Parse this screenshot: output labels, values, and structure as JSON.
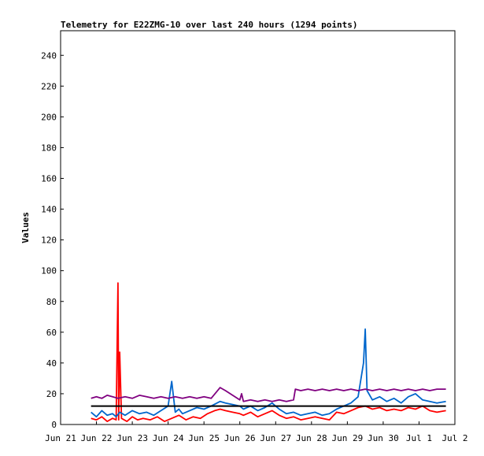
{
  "chart_data": {
    "type": "line",
    "title": "Telemetry for E22ZMG-10 over last 240 hours (1294 points)",
    "xlabel": "",
    "ylabel": "Values",
    "xlim": [
      0,
      11
    ],
    "ylim": [
      0,
      256
    ],
    "grid": false,
    "legend": "none",
    "x_ticks": [
      {
        "pos": 0,
        "label": "Jun 21"
      },
      {
        "pos": 1,
        "label": "Jun 22"
      },
      {
        "pos": 2,
        "label": "Jun 23"
      },
      {
        "pos": 3,
        "label": "Jun 24"
      },
      {
        "pos": 4,
        "label": "Jun 25"
      },
      {
        "pos": 5,
        "label": "Jun 26"
      },
      {
        "pos": 6,
        "label": "Jun 27"
      },
      {
        "pos": 7,
        "label": "Jun 28"
      },
      {
        "pos": 8,
        "label": "Jun 29"
      },
      {
        "pos": 9,
        "label": "Jun 30"
      },
      {
        "pos": 10,
        "label": "Jul 1"
      },
      {
        "pos": 11,
        "label": "Jul 2"
      }
    ],
    "y_ticks": [
      0,
      20,
      40,
      60,
      80,
      100,
      120,
      140,
      160,
      180,
      200,
      220,
      240
    ],
    "series": [
      {
        "color": "#ff0000",
        "x": [
          0.85,
          1.0,
          1.15,
          1.3,
          1.45,
          1.55,
          1.6,
          1.62,
          1.65,
          1.7,
          1.85,
          2.0,
          2.15,
          2.3,
          2.5,
          2.7,
          2.9,
          3.1,
          3.3,
          3.5,
          3.7,
          3.9,
          4.1,
          4.3,
          4.45,
          4.6,
          4.8,
          5.0,
          5.1,
          5.3,
          5.5,
          5.7,
          5.9,
          6.1,
          6.3,
          6.5,
          6.7,
          6.9,
          7.1,
          7.3,
          7.5,
          7.7,
          7.9,
          8.1,
          8.3,
          8.5,
          8.7,
          8.9,
          9.1,
          9.3,
          9.5,
          9.7,
          9.9,
          10.1,
          10.3,
          10.5,
          10.75
        ],
        "y": [
          4,
          3,
          5,
          2,
          4,
          3,
          92,
          3,
          47,
          4,
          2,
          5,
          3,
          4,
          3,
          5,
          2,
          4,
          6,
          3,
          5,
          4,
          7,
          9,
          10,
          9,
          8,
          7,
          6,
          8,
          5,
          7,
          9,
          6,
          4,
          5,
          3,
          4,
          5,
          4,
          3,
          8,
          7,
          9,
          11,
          12,
          10,
          11,
          9,
          10,
          9,
          11,
          10,
          12,
          9,
          8,
          9
        ]
      },
      {
        "color": "#0066cc",
        "x": [
          0.85,
          1.0,
          1.15,
          1.3,
          1.45,
          1.55,
          1.65,
          1.8,
          2.0,
          2.2,
          2.4,
          2.6,
          2.8,
          3.0,
          3.1,
          3.2,
          3.3,
          3.4,
          3.6,
          3.8,
          4.0,
          4.2,
          4.45,
          4.6,
          4.8,
          5.0,
          5.1,
          5.3,
          5.5,
          5.7,
          5.9,
          6.1,
          6.3,
          6.5,
          6.7,
          6.9,
          7.1,
          7.3,
          7.5,
          7.7,
          7.9,
          8.1,
          8.3,
          8.45,
          8.5,
          8.55,
          8.7,
          8.9,
          9.1,
          9.3,
          9.5,
          9.7,
          9.9,
          10.1,
          10.3,
          10.5,
          10.75
        ],
        "y": [
          8,
          5,
          9,
          6,
          7,
          5,
          8,
          6,
          9,
          7,
          8,
          6,
          9,
          12,
          28,
          8,
          10,
          7,
          9,
          11,
          10,
          12,
          15,
          14,
          13,
          12,
          10,
          12,
          9,
          11,
          14,
          10,
          7,
          8,
          6,
          7,
          8,
          6,
          7,
          10,
          12,
          14,
          18,
          40,
          62,
          22,
          16,
          18,
          15,
          17,
          14,
          18,
          20,
          16,
          15,
          14,
          15
        ]
      },
      {
        "color": "#000000",
        "x": [
          0.85,
          10.75
        ],
        "y": [
          12,
          12
        ]
      },
      {
        "color": "#800080",
        "x": [
          0.85,
          1.0,
          1.15,
          1.3,
          1.45,
          1.6,
          1.8,
          2.0,
          2.2,
          2.4,
          2.6,
          2.8,
          3.0,
          3.2,
          3.4,
          3.6,
          3.8,
          4.0,
          4.2,
          4.45,
          4.6,
          4.8,
          5.0,
          5.05,
          5.1,
          5.3,
          5.5,
          5.7,
          5.9,
          6.1,
          6.3,
          6.5,
          6.55,
          6.7,
          6.9,
          7.1,
          7.3,
          7.5,
          7.7,
          7.9,
          8.1,
          8.3,
          8.5,
          8.7,
          8.9,
          9.1,
          9.3,
          9.5,
          9.7,
          9.9,
          10.1,
          10.3,
          10.5,
          10.75
        ],
        "y": [
          17,
          18,
          17,
          19,
          18,
          17,
          18,
          17,
          19,
          18,
          17,
          18,
          17,
          18,
          17,
          18,
          17,
          18,
          17,
          24,
          22,
          19,
          16,
          20,
          15,
          16,
          15,
          16,
          15,
          16,
          15,
          16,
          23,
          22,
          23,
          22,
          23,
          22,
          23,
          22,
          23,
          22,
          23,
          22,
          23,
          22,
          23,
          22,
          23,
          22,
          23,
          22,
          23,
          23
        ]
      }
    ]
  }
}
